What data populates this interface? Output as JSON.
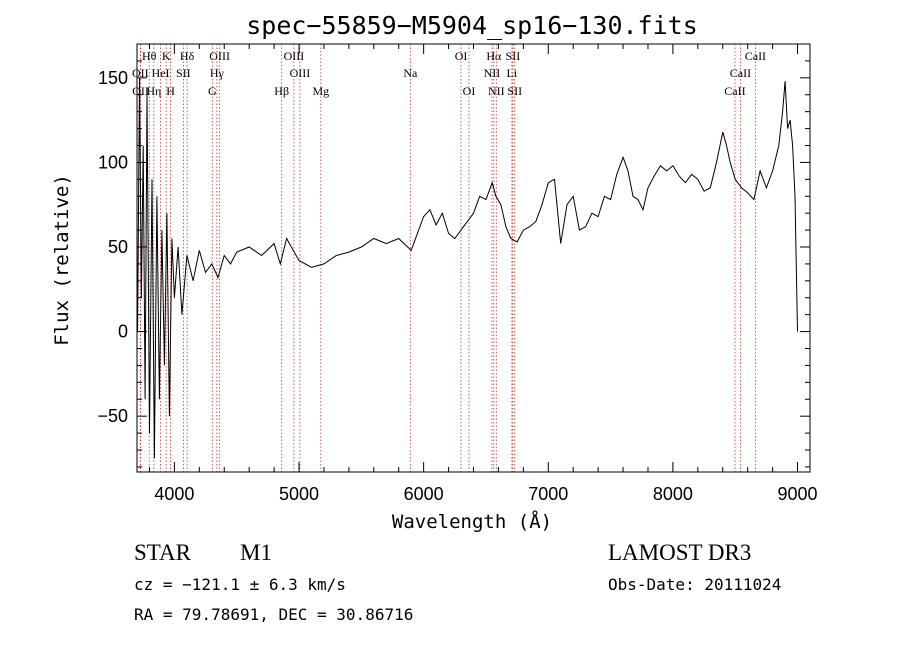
{
  "chart_data": {
    "type": "line",
    "title": "spec−55859−M5904_sp16−130.fits",
    "xlabel": "Wavelength (Å)",
    "ylabel": "Flux (relative)",
    "xlim": [
      3700,
      9100
    ],
    "ylim": [
      -83,
      170
    ],
    "xticks": [
      4000,
      5000,
      6000,
      7000,
      8000,
      9000
    ],
    "yticks": [
      -50,
      0,
      50,
      100,
      150
    ],
    "series": [
      {
        "name": "flux",
        "x": [
          3705,
          3720,
          3735,
          3750,
          3765,
          3780,
          3800,
          3820,
          3840,
          3860,
          3880,
          3900,
          3920,
          3940,
          3960,
          3980,
          4000,
          4030,
          4060,
          4100,
          4150,
          4200,
          4250,
          4300,
          4350,
          4400,
          4450,
          4500,
          4600,
          4700,
          4800,
          4850,
          4900,
          5000,
          5100,
          5200,
          5300,
          5400,
          5500,
          5600,
          5700,
          5800,
          5900,
          6000,
          6050,
          6100,
          6150,
          6200,
          6250,
          6300,
          6350,
          6400,
          6450,
          6500,
          6550,
          6580,
          6620,
          6660,
          6700,
          6750,
          6800,
          6850,
          6900,
          6950,
          7000,
          7050,
          7100,
          7150,
          7200,
          7250,
          7300,
          7350,
          7400,
          7450,
          7500,
          7550,
          7600,
          7640,
          7680,
          7720,
          7760,
          7800,
          7850,
          7900,
          7950,
          8000,
          8050,
          8100,
          8150,
          8200,
          8250,
          8300,
          8350,
          8400,
          8430,
          8460,
          8500,
          8550,
          8600,
          8650,
          8700,
          8750,
          8800,
          8850,
          8880,
          8900,
          8920,
          8940,
          8960,
          8980,
          9000
        ],
        "y": [
          0,
          150,
          20,
          110,
          -40,
          140,
          -60,
          90,
          -75,
          80,
          -40,
          60,
          -20,
          70,
          -50,
          55,
          20,
          50,
          10,
          45,
          30,
          48,
          35,
          40,
          32,
          45,
          40,
          47,
          50,
          45,
          52,
          40,
          55,
          42,
          38,
          40,
          45,
          47,
          50,
          55,
          52,
          55,
          48,
          68,
          72,
          63,
          70,
          58,
          55,
          60,
          65,
          70,
          80,
          78,
          88,
          80,
          75,
          62,
          55,
          53,
          60,
          62,
          65,
          75,
          88,
          90,
          52,
          75,
          80,
          60,
          62,
          70,
          68,
          80,
          78,
          93,
          103,
          95,
          80,
          78,
          72,
          85,
          92,
          98,
          95,
          98,
          92,
          88,
          93,
          90,
          83,
          85,
          100,
          118,
          110,
          100,
          90,
          85,
          82,
          78,
          95,
          85,
          95,
          110,
          130,
          148,
          120,
          125,
          110,
          80,
          0
        ]
      }
    ],
    "line_marks": [
      {
        "label": "Hθ",
        "x": 3798,
        "row": 0
      },
      {
        "label": "K",
        "x": 3934,
        "row": 0
      },
      {
        "label": "Hδ",
        "x": 4102,
        "row": 0
      },
      {
        "label": "OIII",
        "x": 4363,
        "row": 0
      },
      {
        "label": "OIII",
        "x": 4959,
        "row": 0
      },
      {
        "label": "OI",
        "x": 6300,
        "row": 0
      },
      {
        "label": "Hα",
        "x": 6563,
        "row": 0
      },
      {
        "label": "SII",
        "x": 6716,
        "row": 0
      },
      {
        "label": "CaII",
        "x": 8662,
        "row": 0
      },
      {
        "label": "OII",
        "x": 3727,
        "row": 1
      },
      {
        "label": "HeI",
        "x": 3889,
        "row": 1
      },
      {
        "label": "SII",
        "x": 4072,
        "row": 1
      },
      {
        "label": "Hγ",
        "x": 4341,
        "row": 1
      },
      {
        "label": "OIII",
        "x": 5007,
        "row": 1
      },
      {
        "label": "Na",
        "x": 5893,
        "row": 1
      },
      {
        "label": "NII",
        "x": 6548,
        "row": 1
      },
      {
        "label": "Li",
        "x": 6708,
        "row": 1
      },
      {
        "label": "CaII",
        "x": 8542,
        "row": 1
      },
      {
        "label": "OII",
        "x": 3729,
        "row": 2
      },
      {
        "label": "Hη",
        "x": 3835,
        "row": 2
      },
      {
        "label": "H",
        "x": 3969,
        "row": 2
      },
      {
        "label": "G",
        "x": 4304,
        "row": 2
      },
      {
        "label": "Hβ",
        "x": 4861,
        "row": 2
      },
      {
        "label": "Mg",
        "x": 5175,
        "row": 2
      },
      {
        "label": "OI",
        "x": 6364,
        "row": 2
      },
      {
        "label": "NII",
        "x": 6583,
        "row": 2
      },
      {
        "label": "SII",
        "x": 6731,
        "row": 2
      },
      {
        "label": "CaII",
        "x": 8498,
        "row": 2
      }
    ]
  },
  "info": {
    "class_label": "STAR",
    "subclass": "M1",
    "survey": "LAMOST DR3",
    "cz": "cz = −121.1 ± 6.3 km/s",
    "obs_date": "Obs-Date: 20111024",
    "radec": "RA =  79.78691, DEC =  30.86716"
  }
}
